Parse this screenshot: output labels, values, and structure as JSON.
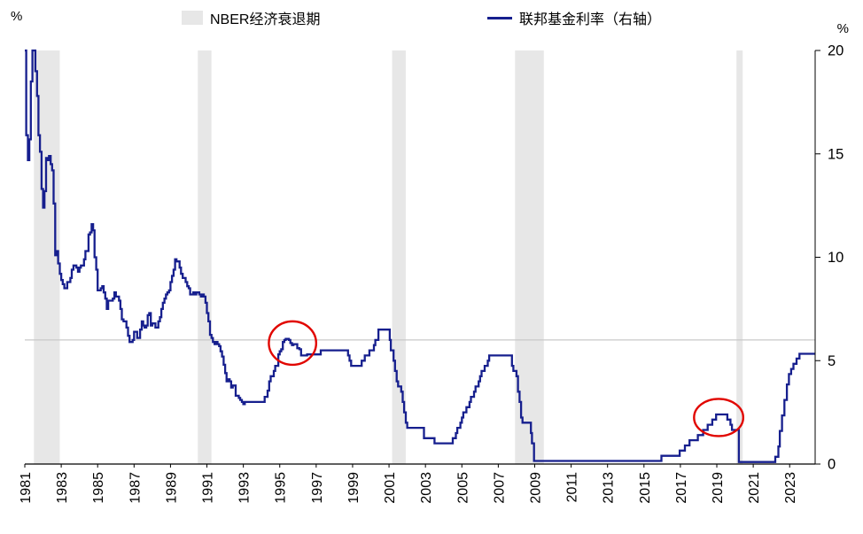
{
  "axes": {
    "left_unit": "%",
    "right_unit": "%"
  },
  "legend": [
    {
      "label": "NBER经济衰退期",
      "swatch": "band",
      "color": "#e7e7e7"
    },
    {
      "label": "联邦基金利率（右轴）",
      "swatch": "line",
      "color": "#161f8e"
    }
  ],
  "chart_data": {
    "type": "line",
    "title": "",
    "x_axis": {
      "min": 1981,
      "max": 2024.4,
      "ticks": [
        1981,
        1983,
        1985,
        1987,
        1989,
        1991,
        1993,
        1995,
        1997,
        1999,
        2001,
        2003,
        2005,
        2007,
        2009,
        2011,
        2013,
        2015,
        2017,
        2019,
        2021,
        2023
      ]
    },
    "y_axis_right": {
      "min": 0,
      "max": 20,
      "ticks": [
        0,
        5,
        10,
        15,
        20
      ],
      "unit": "%"
    },
    "reference_line": {
      "value": 6,
      "color": "#c9c9c9"
    },
    "recession_bands": {
      "label": "NBER经济衰退期",
      "color": "#e7e7e7",
      "ranges": [
        [
          1981.5,
          1982.92
        ],
        [
          1990.5,
          1991.25
        ],
        [
          2001.17,
          2001.92
        ],
        [
          2007.92,
          2009.5
        ],
        [
          2020.08,
          2020.42
        ]
      ]
    },
    "series": [
      {
        "name": "联邦基金利率（右轴）",
        "axis": "right",
        "color": "#161f8e",
        "line_style": "step",
        "points": [
          [
            1981.0,
            20
          ],
          [
            1981.08,
            15.9
          ],
          [
            1981.17,
            14.7
          ],
          [
            1981.25,
            15.7
          ],
          [
            1981.33,
            18.5
          ],
          [
            1981.42,
            20
          ],
          [
            1981.58,
            19
          ],
          [
            1981.67,
            17.8
          ],
          [
            1981.75,
            15.9
          ],
          [
            1981.83,
            15.1
          ],
          [
            1981.92,
            13.3
          ],
          [
            1982.0,
            12.4
          ],
          [
            1982.08,
            13.2
          ],
          [
            1982.17,
            14.8
          ],
          [
            1982.25,
            14.7
          ],
          [
            1982.33,
            14.9
          ],
          [
            1982.42,
            14.5
          ],
          [
            1982.5,
            14.2
          ],
          [
            1982.58,
            12.6
          ],
          [
            1982.67,
            10.1
          ],
          [
            1982.75,
            10.3
          ],
          [
            1982.83,
            9.7
          ],
          [
            1982.92,
            9.2
          ],
          [
            1983.0,
            8.9
          ],
          [
            1983.08,
            8.7
          ],
          [
            1983.17,
            8.5
          ],
          [
            1983.33,
            8.8
          ],
          [
            1983.5,
            9.0
          ],
          [
            1983.58,
            9.4
          ],
          [
            1983.67,
            9.6
          ],
          [
            1983.83,
            9.5
          ],
          [
            1983.92,
            9.3
          ],
          [
            1984.0,
            9.5
          ],
          [
            1984.08,
            9.6
          ],
          [
            1984.25,
            9.9
          ],
          [
            1984.33,
            10.3
          ],
          [
            1984.5,
            11.1
          ],
          [
            1984.58,
            11.2
          ],
          [
            1984.67,
            11.6
          ],
          [
            1984.75,
            11.3
          ],
          [
            1984.83,
            10.0
          ],
          [
            1984.92,
            9.4
          ],
          [
            1985.0,
            8.4
          ],
          [
            1985.17,
            8.5
          ],
          [
            1985.25,
            8.6
          ],
          [
            1985.33,
            8.3
          ],
          [
            1985.42,
            8.0
          ],
          [
            1985.5,
            7.5
          ],
          [
            1985.58,
            7.9
          ],
          [
            1985.83,
            8.0
          ],
          [
            1985.92,
            8.3
          ],
          [
            1986.0,
            8.1
          ],
          [
            1986.17,
            7.9
          ],
          [
            1986.25,
            7.5
          ],
          [
            1986.33,
            7.0
          ],
          [
            1986.42,
            6.9
          ],
          [
            1986.58,
            6.6
          ],
          [
            1986.67,
            6.2
          ],
          [
            1986.75,
            5.9
          ],
          [
            1986.92,
            6.0
          ],
          [
            1987.0,
            6.4
          ],
          [
            1987.17,
            6.1
          ],
          [
            1987.33,
            6.5
          ],
          [
            1987.42,
            6.9
          ],
          [
            1987.5,
            6.7
          ],
          [
            1987.58,
            6.6
          ],
          [
            1987.67,
            6.7
          ],
          [
            1987.75,
            7.2
          ],
          [
            1987.83,
            7.3
          ],
          [
            1987.92,
            6.7
          ],
          [
            1988.0,
            6.8
          ],
          [
            1988.17,
            6.6
          ],
          [
            1988.33,
            6.9
          ],
          [
            1988.42,
            7.1
          ],
          [
            1988.5,
            7.5
          ],
          [
            1988.58,
            7.8
          ],
          [
            1988.67,
            8.0
          ],
          [
            1988.75,
            8.2
          ],
          [
            1988.83,
            8.3
          ],
          [
            1988.92,
            8.4
          ],
          [
            1989.0,
            8.8
          ],
          [
            1989.08,
            9.1
          ],
          [
            1989.17,
            9.4
          ],
          [
            1989.25,
            9.9
          ],
          [
            1989.33,
            9.8
          ],
          [
            1989.5,
            9.5
          ],
          [
            1989.58,
            9.2
          ],
          [
            1989.67,
            9.0
          ],
          [
            1989.83,
            8.8
          ],
          [
            1989.92,
            8.6
          ],
          [
            1990.0,
            8.5
          ],
          [
            1990.08,
            8.2
          ],
          [
            1990.25,
            8.3
          ],
          [
            1990.33,
            8.2
          ],
          [
            1990.42,
            8.3
          ],
          [
            1990.58,
            8.2
          ],
          [
            1990.67,
            8.1
          ],
          [
            1990.75,
            8.2
          ],
          [
            1990.83,
            8.1
          ],
          [
            1990.92,
            7.8
          ],
          [
            1991.0,
            7.3
          ],
          [
            1991.08,
            6.9
          ],
          [
            1991.17,
            6.25
          ],
          [
            1991.25,
            6.1
          ],
          [
            1991.33,
            5.9
          ],
          [
            1991.42,
            5.8
          ],
          [
            1991.5,
            5.9
          ],
          [
            1991.58,
            5.8
          ],
          [
            1991.67,
            5.7
          ],
          [
            1991.75,
            5.45
          ],
          [
            1991.83,
            5.2
          ],
          [
            1991.92,
            4.8
          ],
          [
            1992.0,
            4.4
          ],
          [
            1992.08,
            4.0
          ],
          [
            1992.17,
            4.1
          ],
          [
            1992.25,
            4.0
          ],
          [
            1992.33,
            3.7
          ],
          [
            1992.42,
            3.8
          ],
          [
            1992.58,
            3.3
          ],
          [
            1992.75,
            3.2
          ],
          [
            1992.83,
            3.1
          ],
          [
            1992.92,
            3.0
          ],
          [
            1993.0,
            2.9
          ],
          [
            1993.08,
            3.0
          ],
          [
            1994.17,
            3.25
          ],
          [
            1994.33,
            3.55
          ],
          [
            1994.42,
            4.0
          ],
          [
            1994.5,
            4.25
          ],
          [
            1994.67,
            4.5
          ],
          [
            1994.75,
            4.75
          ],
          [
            1994.92,
            5.3
          ],
          [
            1995.0,
            5.45
          ],
          [
            1995.08,
            5.55
          ],
          [
            1995.17,
            5.9
          ],
          [
            1995.25,
            6.0
          ],
          [
            1995.33,
            6.05
          ],
          [
            1995.5,
            6.0
          ],
          [
            1995.58,
            5.85
          ],
          [
            1995.67,
            5.75
          ],
          [
            1995.75,
            5.8
          ],
          [
            1995.96,
            5.6
          ],
          [
            1996.08,
            5.55
          ],
          [
            1996.17,
            5.25
          ],
          [
            1996.5,
            5.3
          ],
          [
            1997.25,
            5.5
          ],
          [
            1998.75,
            5.25
          ],
          [
            1998.83,
            5.0
          ],
          [
            1998.92,
            4.75
          ],
          [
            1999.5,
            5.0
          ],
          [
            1999.67,
            5.25
          ],
          [
            1999.92,
            5.5
          ],
          [
            2000.17,
            5.75
          ],
          [
            2000.25,
            6.0
          ],
          [
            2000.42,
            6.5
          ],
          [
            2001.04,
            6.0
          ],
          [
            2001.1,
            5.5
          ],
          [
            2001.25,
            5.0
          ],
          [
            2001.33,
            4.5
          ],
          [
            2001.42,
            4.0
          ],
          [
            2001.5,
            3.75
          ],
          [
            2001.67,
            3.5
          ],
          [
            2001.75,
            3.0
          ],
          [
            2001.83,
            2.5
          ],
          [
            2001.92,
            2.0
          ],
          [
            2002.0,
            1.75
          ],
          [
            2002.92,
            1.25
          ],
          [
            2003.5,
            1.0
          ],
          [
            2004.5,
            1.25
          ],
          [
            2004.67,
            1.5
          ],
          [
            2004.75,
            1.75
          ],
          [
            2004.92,
            2.0
          ],
          [
            2005.0,
            2.25
          ],
          [
            2005.08,
            2.5
          ],
          [
            2005.25,
            2.75
          ],
          [
            2005.42,
            3.0
          ],
          [
            2005.5,
            3.25
          ],
          [
            2005.67,
            3.5
          ],
          [
            2005.75,
            3.75
          ],
          [
            2005.92,
            4.0
          ],
          [
            2006.0,
            4.25
          ],
          [
            2006.08,
            4.5
          ],
          [
            2006.25,
            4.75
          ],
          [
            2006.42,
            5.0
          ],
          [
            2006.5,
            5.25
          ],
          [
            2007.75,
            4.75
          ],
          [
            2007.83,
            4.5
          ],
          [
            2008.0,
            4.25
          ],
          [
            2008.08,
            3.5
          ],
          [
            2008.17,
            3.0
          ],
          [
            2008.25,
            2.25
          ],
          [
            2008.33,
            2.0
          ],
          [
            2008.79,
            1.5
          ],
          [
            2008.85,
            1.0
          ],
          [
            2008.96,
            0.15
          ],
          [
            2015.96,
            0.4
          ],
          [
            2016.96,
            0.65
          ],
          [
            2017.25,
            0.9
          ],
          [
            2017.5,
            1.15
          ],
          [
            2017.96,
            1.4
          ],
          [
            2018.25,
            1.65
          ],
          [
            2018.5,
            1.9
          ],
          [
            2018.75,
            2.15
          ],
          [
            2018.96,
            2.4
          ],
          [
            2019.58,
            2.15
          ],
          [
            2019.75,
            1.9
          ],
          [
            2019.83,
            1.65
          ],
          [
            2020.21,
            0.1
          ],
          [
            2022.21,
            0.35
          ],
          [
            2022.38,
            0.85
          ],
          [
            2022.46,
            1.6
          ],
          [
            2022.58,
            2.35
          ],
          [
            2022.71,
            3.1
          ],
          [
            2022.85,
            3.85
          ],
          [
            2022.96,
            4.35
          ],
          [
            2023.08,
            4.6
          ],
          [
            2023.21,
            4.85
          ],
          [
            2023.38,
            5.1
          ],
          [
            2023.54,
            5.33
          ],
          [
            2024.25,
            5.33
          ]
        ]
      }
    ],
    "annotations": [
      {
        "type": "ellipse",
        "x": 1995.7,
        "y": 5.85,
        "rx_years": 1.3,
        "ry_values": 1.05,
        "color": "#e10600"
      },
      {
        "type": "ellipse",
        "x": 2019.1,
        "y": 2.25,
        "rx_years": 1.35,
        "ry_values": 0.9,
        "color": "#e10600"
      }
    ]
  }
}
